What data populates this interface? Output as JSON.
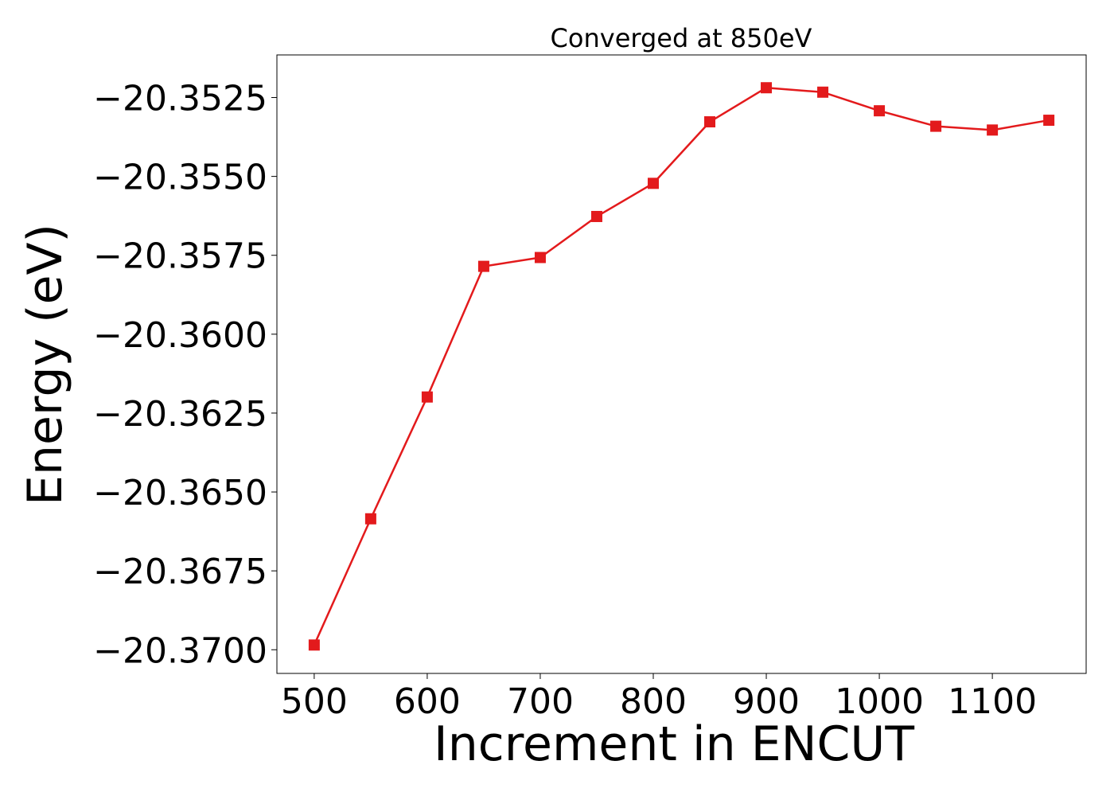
{
  "chart_data": {
    "type": "line",
    "title": "Converged at 850eV",
    "xlabel": "Increment in ENCUT",
    "ylabel": "Energy (eV)",
    "xlim": [
      467,
      1183
    ],
    "ylim": [
      -20.37075,
      -20.35115
    ],
    "xticks": [
      500,
      600,
      700,
      800,
      900,
      1000,
      1100
    ],
    "xtick_labels": [
      "500",
      "600",
      "700",
      "800",
      "900",
      "1000",
      "1100"
    ],
    "yticks": [
      -20.3525,
      -20.355,
      -20.3575,
      -20.36,
      -20.3625,
      -20.365,
      -20.3675,
      -20.37
    ],
    "ytick_labels": [
      "−20.3525",
      "−20.3550",
      "−20.3575",
      "−20.3600",
      "−20.3625",
      "−20.3650",
      "−20.3675",
      "−20.3700"
    ],
    "grid": false,
    "series": [
      {
        "color": "#e31a1c",
        "marker": "square",
        "x": [
          500,
          550,
          600,
          650,
          700,
          750,
          800,
          850,
          900,
          950,
          1000,
          1050,
          1100,
          1150
        ],
        "y": [
          -20.36985,
          -20.36585,
          -20.36199,
          -20.35785,
          -20.35757,
          -20.35627,
          -20.35522,
          -20.35327,
          -20.35219,
          -20.35233,
          -20.35292,
          -20.35341,
          -20.35353,
          -20.35322
        ]
      }
    ]
  }
}
